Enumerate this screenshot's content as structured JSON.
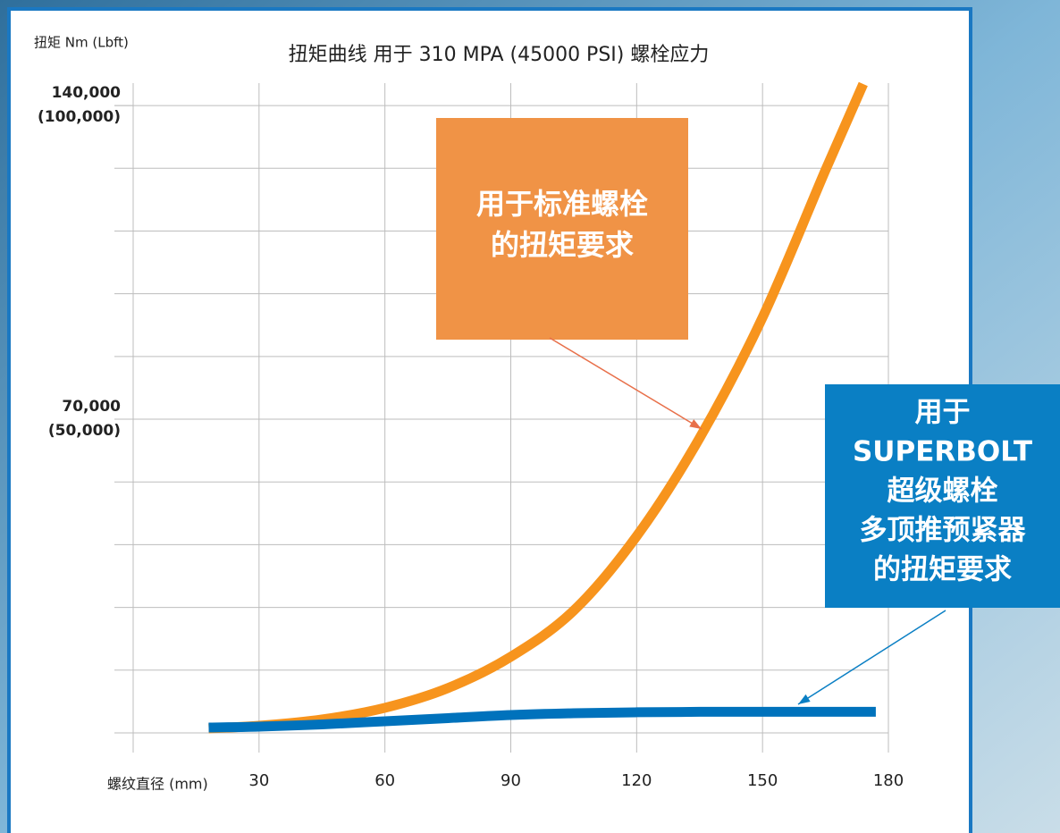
{
  "chart_data": {
    "type": "line",
    "title": "扭矩曲线 用于 310 MPA (45000 PSI) 螺栓应力",
    "y_label": "扭矩 Nm (Lbft)",
    "x_label": "螺纹直径 (mm)",
    "xlim": [
      0,
      180
    ],
    "xticks": [
      30,
      60,
      90,
      120,
      150,
      180
    ],
    "ylim": [
      0,
      145000
    ],
    "ygrid": [
      0,
      14000,
      28000,
      42000,
      56000,
      70000,
      84000,
      98000,
      112000,
      126000,
      140000
    ],
    "yticks": [
      {
        "value": 70000,
        "label": "70,000",
        "label2": "(50,000)"
      },
      {
        "value": 140000,
        "label": "140,000",
        "label2": "(100,000)"
      }
    ],
    "grid": true,
    "series": [
      {
        "color": "#f7941d",
        "x": [
          18,
          30,
          45,
          60,
          75,
          90,
          105,
          120,
          135,
          150,
          165,
          174
        ],
        "values": [
          1000,
          1600,
          3000,
          5600,
          10000,
          17000,
          27300,
          43900,
          65800,
          92700,
          125600,
          144800
        ]
      },
      {
        "color": "#0072bc",
        "x": [
          18,
          30,
          45,
          60,
          75,
          90,
          105,
          120,
          135,
          150,
          165,
          177
        ],
        "values": [
          1200,
          1400,
          1900,
          2600,
          3300,
          4000,
          4400,
          4600,
          4700,
          4700,
          4700,
          4700
        ]
      }
    ],
    "annotations": [
      {
        "lines": [
          "用于标准螺栓",
          "的扭矩要求"
        ],
        "color": "#f09346",
        "arrow_color": "#e8704a"
      },
      {
        "lines": [
          "用于",
          "SUPERBOLT",
          "超级螺栓",
          "多顶推预紧器",
          "的扭矩要求"
        ],
        "color": "#0a7fc4",
        "arrow_color": "#0a7fc4"
      }
    ]
  }
}
